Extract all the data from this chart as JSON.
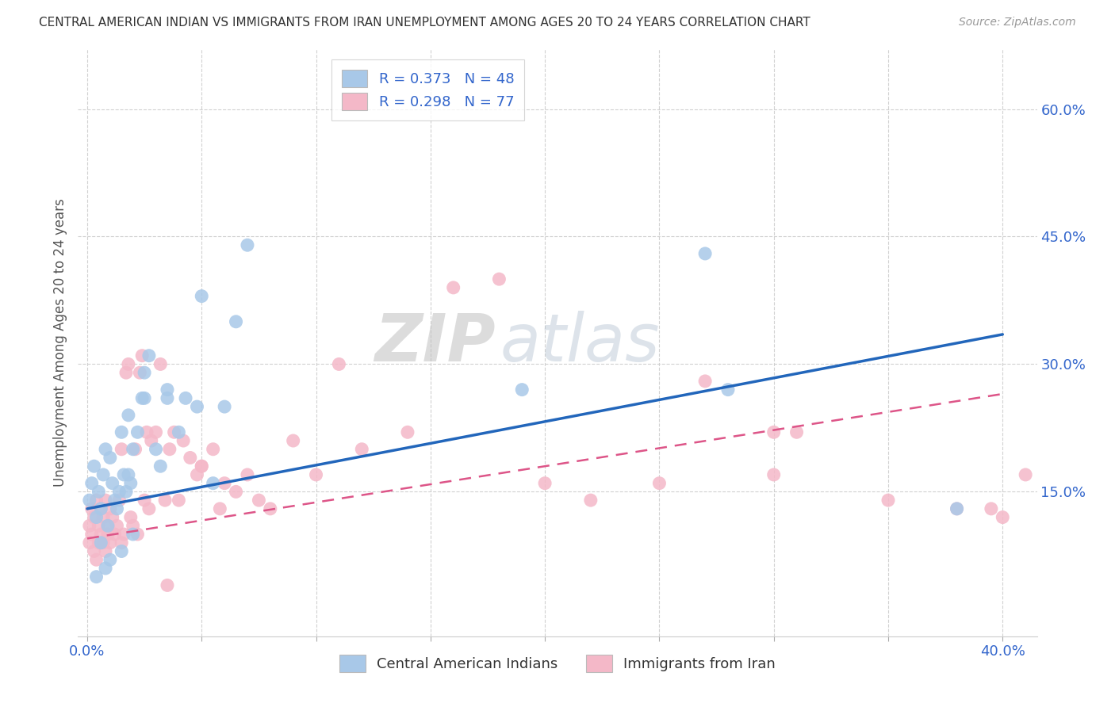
{
  "title": "CENTRAL AMERICAN INDIAN VS IMMIGRANTS FROM IRAN UNEMPLOYMENT AMONG AGES 20 TO 24 YEARS CORRELATION CHART",
  "source": "Source: ZipAtlas.com",
  "ylabel": "Unemployment Among Ages 20 to 24 years",
  "xlim": [
    -0.004,
    0.415
  ],
  "ylim": [
    -0.02,
    0.67
  ],
  "xticks": [
    0.0,
    0.05,
    0.1,
    0.15,
    0.2,
    0.25,
    0.3,
    0.35,
    0.4
  ],
  "xticklabels": [
    "0.0%",
    "",
    "",
    "",
    "",
    "",
    "",
    "",
    "40.0%"
  ],
  "yticks_right": [
    0.15,
    0.3,
    0.45,
    0.6
  ],
  "ytick_labels_right": [
    "15.0%",
    "30.0%",
    "45.0%",
    "60.0%"
  ],
  "blue_color": "#a8c8e8",
  "pink_color": "#f4b8c8",
  "legend_blue_label": "R = 0.373   N = 48",
  "legend_pink_label": "R = 0.298   N = 77",
  "legend_bottom_blue": "Central American Indians",
  "legend_bottom_pink": "Immigrants from Iran",
  "blue_line_color": "#2266bb",
  "pink_line_color": "#dd5588",
  "background_color": "#ffffff",
  "grid_color": "#cccccc",
  "blue_line_x0": 0.0,
  "blue_line_y0": 0.13,
  "blue_line_x1": 0.4,
  "blue_line_y1": 0.335,
  "pink_line_x0": 0.0,
  "pink_line_y0": 0.095,
  "pink_line_x1": 0.4,
  "pink_line_y1": 0.265,
  "blue_scatter_x": [
    0.001,
    0.002,
    0.003,
    0.004,
    0.005,
    0.006,
    0.007,
    0.008,
    0.009,
    0.01,
    0.011,
    0.012,
    0.013,
    0.014,
    0.015,
    0.016,
    0.017,
    0.018,
    0.019,
    0.02,
    0.022,
    0.024,
    0.025,
    0.027,
    0.03,
    0.032,
    0.035,
    0.04,
    0.043,
    0.048,
    0.055,
    0.06,
    0.065,
    0.02,
    0.015,
    0.01,
    0.008,
    0.006,
    0.004,
    0.018,
    0.025,
    0.19,
    0.28,
    0.38,
    0.27,
    0.07,
    0.05,
    0.035
  ],
  "blue_scatter_y": [
    0.14,
    0.16,
    0.18,
    0.12,
    0.15,
    0.13,
    0.17,
    0.2,
    0.11,
    0.19,
    0.16,
    0.14,
    0.13,
    0.15,
    0.22,
    0.17,
    0.15,
    0.24,
    0.16,
    0.2,
    0.22,
    0.26,
    0.29,
    0.31,
    0.2,
    0.18,
    0.27,
    0.22,
    0.26,
    0.25,
    0.16,
    0.25,
    0.35,
    0.1,
    0.08,
    0.07,
    0.06,
    0.09,
    0.05,
    0.17,
    0.26,
    0.27,
    0.27,
    0.13,
    0.43,
    0.44,
    0.38,
    0.26
  ],
  "pink_scatter_x": [
    0.001,
    0.001,
    0.002,
    0.002,
    0.003,
    0.003,
    0.004,
    0.004,
    0.005,
    0.005,
    0.006,
    0.006,
    0.007,
    0.007,
    0.008,
    0.008,
    0.009,
    0.009,
    0.01,
    0.01,
    0.011,
    0.012,
    0.013,
    0.014,
    0.015,
    0.015,
    0.016,
    0.017,
    0.018,
    0.019,
    0.02,
    0.021,
    0.022,
    0.023,
    0.024,
    0.025,
    0.026,
    0.027,
    0.028,
    0.03,
    0.032,
    0.034,
    0.036,
    0.038,
    0.04,
    0.042,
    0.045,
    0.048,
    0.05,
    0.055,
    0.058,
    0.06,
    0.065,
    0.07,
    0.075,
    0.08,
    0.09,
    0.1,
    0.11,
    0.12,
    0.14,
    0.16,
    0.2,
    0.22,
    0.25,
    0.27,
    0.3,
    0.31,
    0.35,
    0.38,
    0.395,
    0.4,
    0.41,
    0.3,
    0.18,
    0.05,
    0.035
  ],
  "pink_scatter_y": [
    0.09,
    0.11,
    0.1,
    0.13,
    0.08,
    0.12,
    0.07,
    0.14,
    0.09,
    0.11,
    0.1,
    0.13,
    0.09,
    0.12,
    0.08,
    0.14,
    0.1,
    0.11,
    0.09,
    0.13,
    0.12,
    0.1,
    0.11,
    0.14,
    0.09,
    0.2,
    0.1,
    0.29,
    0.3,
    0.12,
    0.11,
    0.2,
    0.1,
    0.29,
    0.31,
    0.14,
    0.22,
    0.13,
    0.21,
    0.22,
    0.3,
    0.14,
    0.2,
    0.22,
    0.14,
    0.21,
    0.19,
    0.17,
    0.18,
    0.2,
    0.13,
    0.16,
    0.15,
    0.17,
    0.14,
    0.13,
    0.21,
    0.17,
    0.3,
    0.2,
    0.22,
    0.39,
    0.16,
    0.14,
    0.16,
    0.28,
    0.17,
    0.22,
    0.14,
    0.13,
    0.13,
    0.12,
    0.17,
    0.22,
    0.4,
    0.18,
    0.04
  ]
}
